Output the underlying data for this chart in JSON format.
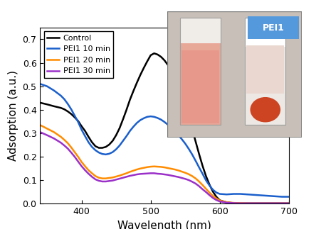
{
  "title": "",
  "xlabel": "Wavelength (nm)",
  "ylabel": "Adsorption (a.u.)",
  "xlim": [
    340,
    700
  ],
  "ylim": [
    0,
    0.75
  ],
  "yticks": [
    0.0,
    0.1,
    0.2,
    0.3,
    0.4,
    0.5,
    0.6,
    0.7
  ],
  "xticks": [
    400,
    500,
    600,
    700
  ],
  "legend_labels": [
    "Control",
    "PEI1 10 min",
    "PEI1 20 min",
    "PEI1 30 min"
  ],
  "colors": [
    "black",
    "#1a5fcc",
    "#ff8c00",
    "#9b30c8"
  ],
  "linewidths": [
    1.8,
    1.8,
    1.8,
    1.8
  ],
  "control": {
    "x": [
      340,
      350,
      360,
      370,
      375,
      380,
      385,
      390,
      395,
      400,
      405,
      410,
      415,
      420,
      425,
      430,
      435,
      440,
      445,
      450,
      455,
      460,
      465,
      470,
      475,
      480,
      485,
      490,
      495,
      500,
      505,
      510,
      515,
      520,
      525,
      530,
      535,
      540,
      545,
      550,
      555,
      560,
      565,
      570,
      575,
      580,
      585,
      590,
      595,
      600,
      610,
      620,
      630,
      640,
      650,
      660,
      670,
      680,
      690,
      700
    ],
    "y": [
      0.43,
      0.423,
      0.415,
      0.408,
      0.402,
      0.393,
      0.382,
      0.368,
      0.352,
      0.33,
      0.31,
      0.285,
      0.262,
      0.245,
      0.238,
      0.238,
      0.242,
      0.252,
      0.268,
      0.292,
      0.322,
      0.36,
      0.4,
      0.443,
      0.48,
      0.515,
      0.548,
      0.578,
      0.606,
      0.632,
      0.64,
      0.635,
      0.625,
      0.61,
      0.59,
      0.565,
      0.535,
      0.5,
      0.46,
      0.418,
      0.37,
      0.318,
      0.265,
      0.212,
      0.162,
      0.118,
      0.082,
      0.052,
      0.03,
      0.015,
      0.006,
      0.003,
      0.002,
      0.002,
      0.002,
      0.002,
      0.002,
      0.002,
      0.002,
      0.002
    ]
  },
  "pei1_10": {
    "x": [
      340,
      350,
      360,
      370,
      375,
      380,
      385,
      390,
      395,
      400,
      405,
      410,
      415,
      420,
      425,
      430,
      435,
      440,
      445,
      450,
      455,
      460,
      465,
      470,
      475,
      480,
      485,
      490,
      495,
      500,
      505,
      510,
      515,
      520,
      525,
      530,
      535,
      540,
      545,
      550,
      555,
      560,
      565,
      570,
      575,
      580,
      585,
      590,
      595,
      600,
      610,
      620,
      630,
      640,
      650,
      660,
      670,
      680,
      690,
      700
    ],
    "y": [
      0.51,
      0.5,
      0.482,
      0.46,
      0.445,
      0.425,
      0.402,
      0.375,
      0.348,
      0.315,
      0.288,
      0.262,
      0.242,
      0.228,
      0.218,
      0.212,
      0.21,
      0.213,
      0.22,
      0.232,
      0.248,
      0.268,
      0.288,
      0.31,
      0.328,
      0.344,
      0.356,
      0.364,
      0.37,
      0.372,
      0.37,
      0.365,
      0.358,
      0.348,
      0.336,
      0.322,
      0.308,
      0.292,
      0.275,
      0.256,
      0.234,
      0.21,
      0.183,
      0.155,
      0.128,
      0.1,
      0.078,
      0.06,
      0.048,
      0.042,
      0.04,
      0.042,
      0.042,
      0.04,
      0.038,
      0.036,
      0.034,
      0.032,
      0.03,
      0.03
    ]
  },
  "pei1_20": {
    "x": [
      340,
      350,
      360,
      370,
      375,
      380,
      385,
      390,
      395,
      400,
      405,
      410,
      415,
      420,
      425,
      430,
      435,
      440,
      445,
      450,
      455,
      460,
      465,
      470,
      475,
      480,
      485,
      490,
      495,
      500,
      505,
      510,
      515,
      520,
      525,
      530,
      535,
      540,
      545,
      550,
      555,
      560,
      565,
      570,
      575,
      580,
      585,
      590,
      595,
      600,
      610,
      620,
      630,
      640,
      650,
      660,
      670,
      680,
      690,
      700
    ],
    "y": [
      0.335,
      0.32,
      0.305,
      0.285,
      0.272,
      0.258,
      0.24,
      0.22,
      0.2,
      0.178,
      0.16,
      0.143,
      0.13,
      0.118,
      0.111,
      0.108,
      0.108,
      0.11,
      0.112,
      0.116,
      0.12,
      0.125,
      0.13,
      0.136,
      0.141,
      0.146,
      0.15,
      0.153,
      0.156,
      0.158,
      0.159,
      0.158,
      0.157,
      0.155,
      0.152,
      0.149,
      0.146,
      0.142,
      0.137,
      0.132,
      0.126,
      0.118,
      0.108,
      0.095,
      0.08,
      0.064,
      0.048,
      0.034,
      0.023,
      0.014,
      0.007,
      0.004,
      0.003,
      0.002,
      0.002,
      0.002,
      0.002,
      0.002,
      0.002,
      0.002
    ]
  },
  "pei1_30": {
    "x": [
      340,
      350,
      360,
      370,
      375,
      380,
      385,
      390,
      395,
      400,
      405,
      410,
      415,
      420,
      425,
      430,
      435,
      440,
      445,
      450,
      455,
      460,
      465,
      470,
      475,
      480,
      485,
      490,
      495,
      500,
      505,
      510,
      515,
      520,
      525,
      530,
      535,
      540,
      545,
      550,
      555,
      560,
      565,
      570,
      575,
      580,
      585,
      590,
      595,
      600,
      610,
      620,
      630,
      640,
      650,
      660,
      670,
      680,
      690,
      700
    ],
    "y": [
      0.305,
      0.292,
      0.278,
      0.26,
      0.248,
      0.235,
      0.218,
      0.2,
      0.18,
      0.16,
      0.143,
      0.128,
      0.115,
      0.104,
      0.098,
      0.095,
      0.095,
      0.097,
      0.099,
      0.103,
      0.107,
      0.111,
      0.115,
      0.119,
      0.122,
      0.125,
      0.127,
      0.128,
      0.129,
      0.13,
      0.13,
      0.128,
      0.127,
      0.125,
      0.123,
      0.12,
      0.117,
      0.114,
      0.11,
      0.106,
      0.101,
      0.094,
      0.086,
      0.075,
      0.062,
      0.05,
      0.037,
      0.025,
      0.016,
      0.01,
      0.005,
      0.003,
      0.002,
      0.002,
      0.002,
      0.002,
      0.002,
      0.002,
      0.002,
      0.002
    ]
  },
  "inset": {
    "bg_color": "#c8c0b8",
    "left_tube_body": "#e8a898",
    "left_tube_liquid": "#e8988a",
    "right_tube_body": "#e8c4b8",
    "right_tube_bottom": "#cc4422",
    "tube_border": "#a0a0a0",
    "label_bg": "#5599dd",
    "label_text": "PEI1",
    "label_text_color": "white"
  }
}
